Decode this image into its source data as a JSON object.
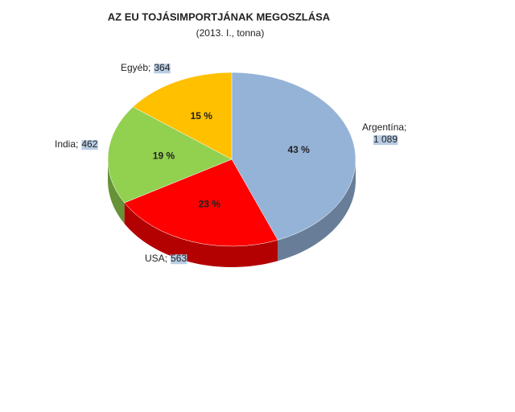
{
  "chart_data": {
    "type": "pie3d",
    "title": "AZ EU TOJÁSIMPORTJÁNAK MEGOSZLÁSA",
    "subtitle": "(2013. I., tonna)",
    "categories": [
      "Argentína",
      "USA",
      "India",
      "Egyéb"
    ],
    "values": [
      1089,
      563,
      462,
      364
    ],
    "value_labels": [
      "1 089",
      "563",
      "462",
      "364"
    ],
    "label_separator": ";",
    "percentages": [
      43,
      23,
      19,
      15
    ],
    "percentage_labels": [
      "43 %",
      "23 %",
      "19 %",
      "15 %"
    ],
    "colors": [
      "#95b3d7",
      "#ff0000",
      "#92d050",
      "#ffc000"
    ]
  }
}
